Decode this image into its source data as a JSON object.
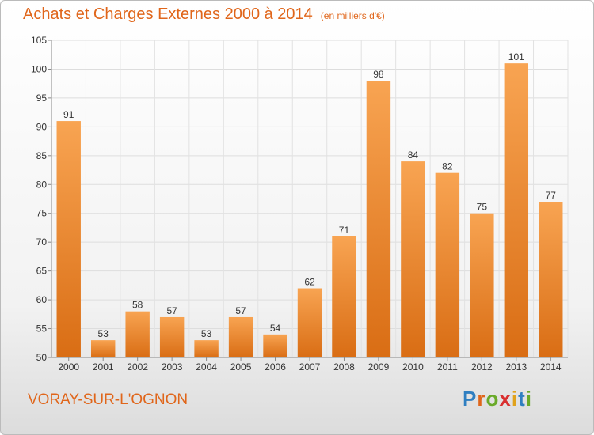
{
  "header": {
    "title": "Achats et Charges Externes 2000 à 2014",
    "unit": "(en milliers d'€)"
  },
  "footer": {
    "commune": "VORAY-SUR-L'OGNON",
    "brand": "Proxiti",
    "brand_letters": [
      {
        "char": "P",
        "color": "#2f7fc1"
      },
      {
        "char": "r",
        "color": "#e0661b"
      },
      {
        "char": "o",
        "color": "#6aaa2a"
      },
      {
        "char": "x",
        "color": "#d92f2f"
      },
      {
        "char": "i",
        "color": "#e0a21b"
      },
      {
        "char": "t",
        "color": "#2f7fc1"
      },
      {
        "char": "i",
        "color": "#6aaa2a"
      }
    ]
  },
  "chart_data": {
    "type": "bar",
    "title": "Achats et Charges Externes 2000 à 2014",
    "subtitle": "(en milliers d'€)",
    "categories": [
      "2000",
      "2001",
      "2002",
      "2003",
      "2004",
      "2005",
      "2006",
      "2007",
      "2008",
      "2009",
      "2010",
      "2011",
      "2012",
      "2013",
      "2014"
    ],
    "values": [
      91,
      53,
      58,
      57,
      53,
      57,
      54,
      62,
      71,
      98,
      84,
      82,
      75,
      101,
      77
    ],
    "ylim": [
      50,
      105
    ],
    "yticks": [
      50,
      55,
      60,
      65,
      70,
      75,
      80,
      85,
      90,
      95,
      100,
      105
    ],
    "grid": true,
    "legend": "none",
    "bar_color_top": "#f8a452",
    "bar_color_bottom": "#d96d14"
  }
}
